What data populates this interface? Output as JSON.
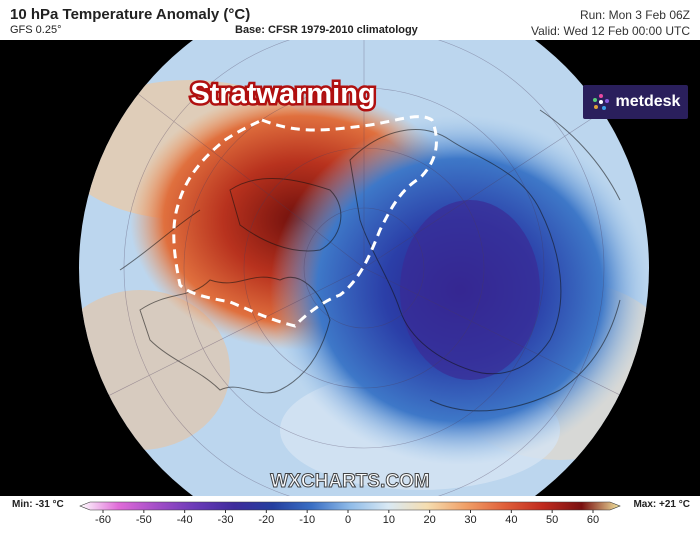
{
  "header": {
    "title": "10 hPa Temperature Anomaly (°C)",
    "model": "GFS 0.25°",
    "base": "Base: CFSR 1979-2010 climatology",
    "run": "Run: Mon 3 Feb 06Z",
    "valid": "Valid: Wed 12 Feb 00:00 UTC"
  },
  "brand": {
    "name": "metdesk",
    "icon": "metdesk-logo-icon"
  },
  "map": {
    "annotation": "Stratwarming",
    "watermark": "WXCHARTS.COM"
  },
  "legend": {
    "min_label": "Min: -31 °C",
    "max_label": "Max: +21 °C",
    "ticks": [
      "-60",
      "-50",
      "-40",
      "-30",
      "-20",
      "-10",
      "0",
      "10",
      "20",
      "30",
      "40",
      "50",
      "60"
    ],
    "colors": [
      "#ffffff",
      "#e06bd8",
      "#a24dc7",
      "#6a3ab8",
      "#3e2c9c",
      "#243f9f",
      "#3a6fc4",
      "#8fbbe8",
      "#d9e9f4",
      "#f5ddb0",
      "#f0a068",
      "#e0603a",
      "#c02a1e",
      "#7a1010",
      "#f2e6a0"
    ]
  }
}
